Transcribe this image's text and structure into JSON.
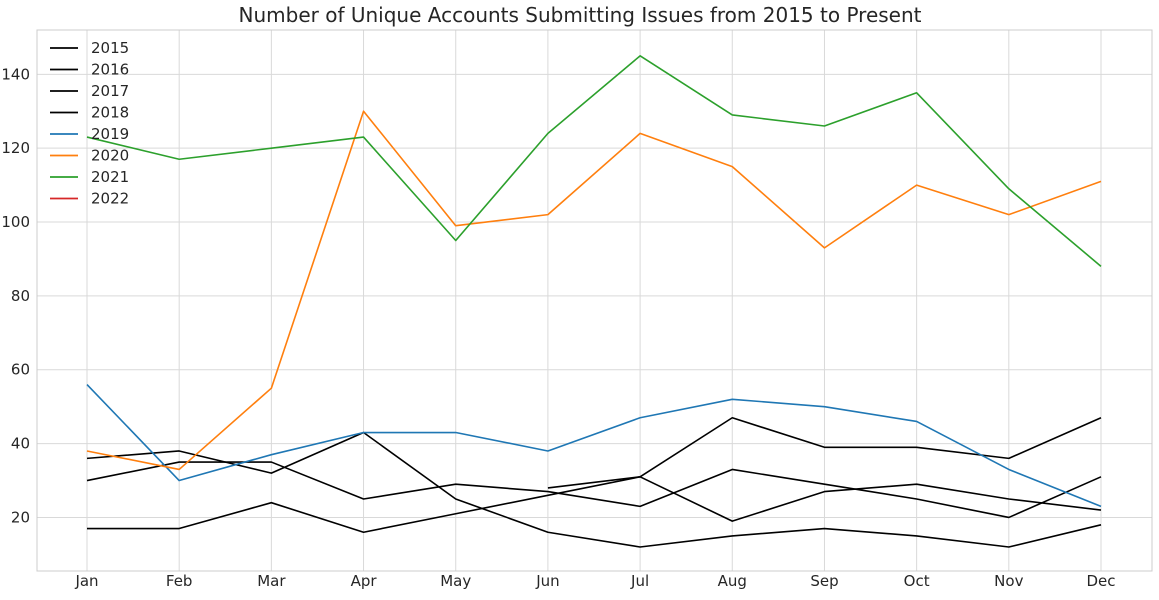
{
  "chart_data": {
    "type": "line",
    "title": "Number of Unique Accounts Submitting Issues from 2015 to Present",
    "xlabel": "",
    "ylabel": "",
    "categories": [
      "Jan",
      "Feb",
      "Mar",
      "Apr",
      "May",
      "Jun",
      "Jul",
      "Aug",
      "Sep",
      "Oct",
      "Nov",
      "Dec"
    ],
    "ylim": [
      5.5,
      152
    ],
    "yticks": [
      20,
      40,
      60,
      80,
      100,
      120,
      140
    ],
    "grid": true,
    "legend": "top-left",
    "series": [
      {
        "name": "2015",
        "color": "#000000",
        "values": [
          null,
          null,
          null,
          null,
          null,
          28,
          31,
          19,
          27,
          29,
          25,
          22
        ]
      },
      {
        "name": "2016",
        "color": "#000000",
        "values": [
          17,
          17,
          24,
          16,
          21,
          26,
          31,
          47,
          39,
          39,
          36,
          47
        ]
      },
      {
        "name": "2017",
        "color": "#000000",
        "values": [
          30,
          35,
          35,
          25,
          29,
          27,
          23,
          33,
          29,
          25,
          20,
          31
        ]
      },
      {
        "name": "2018",
        "color": "#000000",
        "values": [
          36,
          38,
          32,
          43,
          25,
          16,
          12,
          15,
          17,
          15,
          12,
          18
        ]
      },
      {
        "name": "2019",
        "color": "#1f77b4",
        "values": [
          56,
          30,
          37,
          43,
          43,
          38,
          47,
          52,
          50,
          46,
          33,
          23
        ]
      },
      {
        "name": "2020",
        "color": "#ff7f0e",
        "values": [
          38,
          33,
          55,
          130,
          99,
          102,
          124,
          115,
          93,
          110,
          102,
          111
        ]
      },
      {
        "name": "2021",
        "color": "#2ca02c",
        "values": [
          123,
          117,
          120,
          123,
          95,
          124,
          145,
          129,
          126,
          135,
          109,
          88
        ]
      },
      {
        "name": "2022",
        "color": "#d62728",
        "values": [
          null,
          null,
          null,
          null,
          null,
          null,
          null,
          null,
          null,
          null,
          null,
          null
        ]
      }
    ]
  }
}
